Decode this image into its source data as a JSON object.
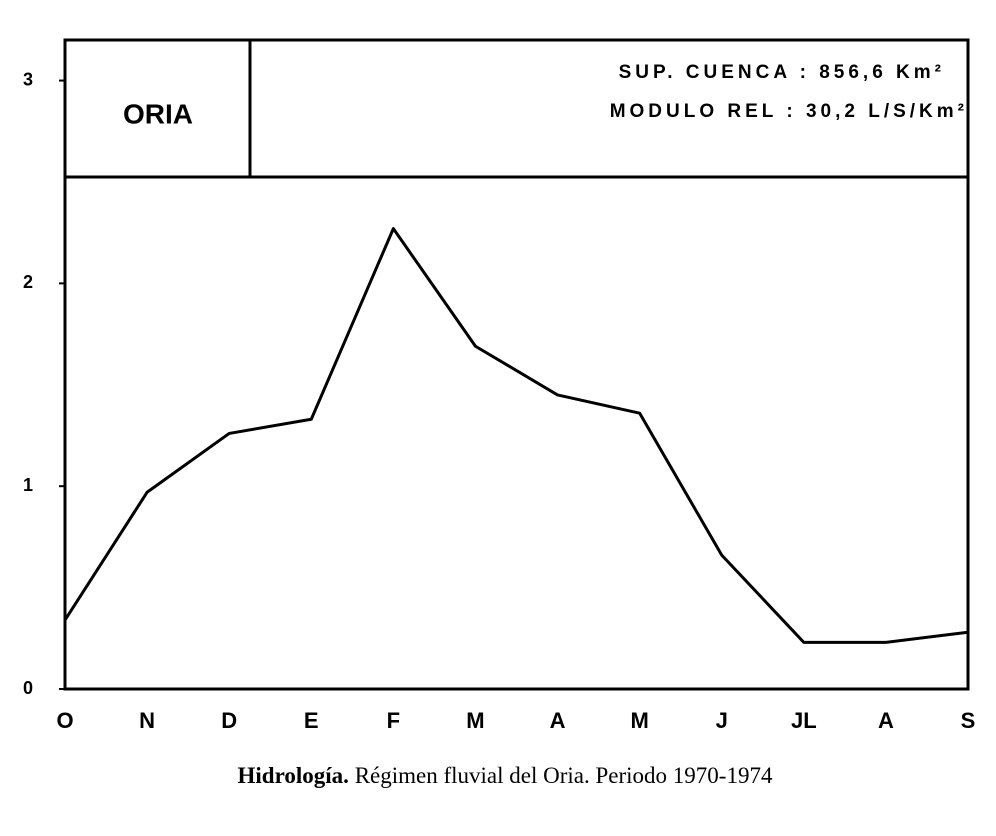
{
  "chart_data": {
    "type": "line",
    "box_title": "ORIA",
    "box_lines": [
      "SUP. CUENCA : 856,6 Km²",
      "MODULO REL : 30,2 L/S/Km²"
    ],
    "caption_bold": "Hidrología.",
    "caption": "Régimen fluvial del Oria. Periodo 1970-1974",
    "categories": [
      "O",
      "N",
      "D",
      "E",
      "F",
      "M",
      "A",
      "M",
      "J",
      "JL",
      "A",
      "S"
    ],
    "values": [
      0.34,
      0.97,
      1.26,
      1.33,
      2.27,
      1.69,
      1.45,
      1.36,
      0.66,
      0.23,
      0.23,
      0.28
    ],
    "color": "#000000",
    "ylim": [
      0,
      3.2
    ],
    "yticks": [
      0,
      1,
      2,
      3
    ]
  }
}
